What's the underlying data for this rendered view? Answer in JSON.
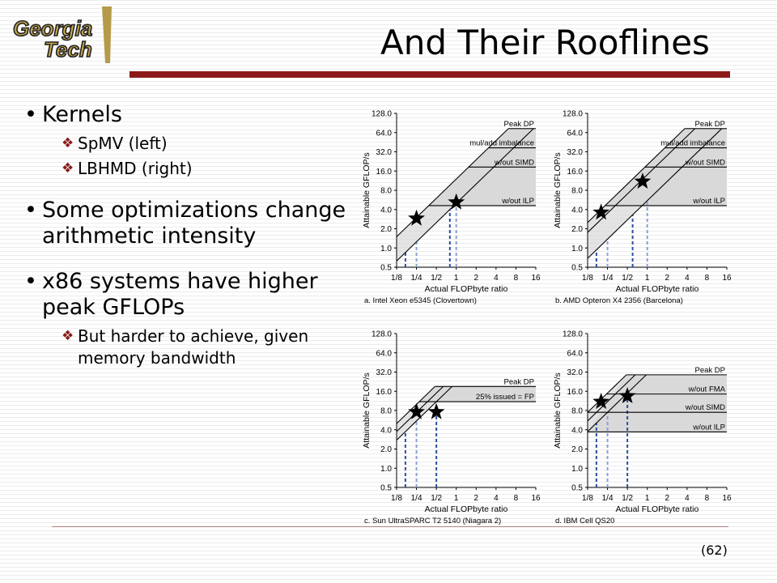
{
  "logo": {
    "line1": "Georgia",
    "line2": "Tech"
  },
  "title": "And Their Rooflines",
  "bullets": [
    {
      "text": "Kernels",
      "sub": [
        "SpMV (left)",
        "LBHMD (right)"
      ]
    },
    {
      "text": "Some optimizations change arithmetic intensity",
      "sub": []
    },
    {
      "text": "x86 systems have higher peak GFLOPs",
      "sub": [
        "But harder to achieve, given memory bandwidth"
      ]
    }
  ],
  "page_number": "(62)",
  "colors": {
    "accent": "#8b1a1a",
    "shade": "#d9d9d9",
    "dash": "#2a4fa0",
    "dash_light": "#8aa0d0"
  },
  "chart_data": [
    {
      "type": "line",
      "caption": "a. Intel Xeon e5345 (Clovertown)",
      "xlabel": "Actual FLOPbyte ratio",
      "ylabel": "Attainable GFLOP/s",
      "x_ticks": [
        "1/8",
        "1/4",
        "1/2",
        "1",
        "2",
        "4",
        "8",
        "16"
      ],
      "y_ticks": [
        "0.5",
        "1.0",
        "2.0",
        "4.0",
        "8.0",
        "16.0",
        "32.0",
        "64.0",
        "128.0"
      ],
      "scale": "log2",
      "xlim": [
        0.125,
        16
      ],
      "ylim": [
        0.5,
        128
      ],
      "ceilings": [
        {
          "label": "Peak DP",
          "value": 74
        },
        {
          "label": "mul/add imbalance",
          "value": 37
        },
        {
          "label": "w/out SIMD",
          "value": 18.5
        },
        {
          "label": "w/out ILP",
          "value": 4.6
        }
      ],
      "bandwidth_diagonals": [
        {
          "x": 1,
          "y": 12
        },
        {
          "x": 1,
          "y": 5
        }
      ],
      "markers": [
        {
          "x": 0.25,
          "y": 2.9
        },
        {
          "x": 1,
          "y": 5.2
        }
      ],
      "dashed_x": [
        0.17,
        0.25,
        0.8,
        1
      ]
    },
    {
      "type": "line",
      "caption": "b. AMD Opteron X4 2356 (Barcelona)",
      "xlabel": "Actual FLOPbyte ratio",
      "ylabel": "Attainable GFLOP/s",
      "x_ticks": [
        "1/8",
        "1/4",
        "1/2",
        "1",
        "2",
        "4",
        "8",
        "16"
      ],
      "y_ticks": [
        "0.5",
        "1.0",
        "2.0",
        "4.0",
        "8.0",
        "16.0",
        "32.0",
        "64.0",
        "128.0"
      ],
      "scale": "log2",
      "xlim": [
        0.125,
        16
      ],
      "ylim": [
        0.5,
        128
      ],
      "ceilings": [
        {
          "label": "Peak DP",
          "value": 74
        },
        {
          "label": "mul/add imbalance",
          "value": 37
        },
        {
          "label": "w/out SIMD",
          "value": 18.5
        },
        {
          "label": "w/out ILP",
          "value": 4.6
        }
      ],
      "bandwidth_diagonals": [
        {
          "x": 1,
          "y": 20
        },
        {
          "x": 1,
          "y": 14
        },
        {
          "x": 1,
          "y": 5.5
        }
      ],
      "markers": [
        {
          "x": 0.2,
          "y": 3.6
        },
        {
          "x": 0.85,
          "y": 11
        }
      ],
      "dashed_x": [
        0.17,
        0.25,
        0.6,
        1
      ]
    },
    {
      "type": "line",
      "caption": "c. Sun UltraSPARC T2 5140 (Niagara 2)",
      "xlabel": "Actual FLOPbyte ratio",
      "ylabel": "Attainable GFLOP/s",
      "x_ticks": [
        "1/8",
        "1/4",
        "1/2",
        "1",
        "2",
        "4",
        "8",
        "16"
      ],
      "y_ticks": [
        "0.5",
        "1.0",
        "2.0",
        "4.0",
        "8.0",
        "16.0",
        "32.0",
        "64.0",
        "128.0"
      ],
      "scale": "log2",
      "xlim": [
        0.125,
        16
      ],
      "ylim": [
        0.5,
        128
      ],
      "ceilings": [
        {
          "label": "Peak DP",
          "value": 19
        },
        {
          "label": "25% issued = FP",
          "value": 11
        }
      ],
      "bandwidth_diagonals": [
        {
          "x": 1,
          "y": 40
        },
        {
          "x": 1,
          "y": 30
        },
        {
          "x": 1,
          "y": 22
        }
      ],
      "markers": [
        {
          "x": 0.25,
          "y": 7.6
        },
        {
          "x": 0.5,
          "y": 7.6
        }
      ],
      "dashed_x": [
        0.17,
        0.25,
        0.5
      ]
    },
    {
      "type": "line",
      "caption": "d. IBM Cell QS20",
      "xlabel": "Actual FLOPbyte ratio",
      "ylabel": "Attainable GFLOP/s",
      "x_ticks": [
        "1/8",
        "1/4",
        "1/2",
        "1",
        "2",
        "4",
        "8",
        "16"
      ],
      "y_ticks": [
        "0.5",
        "1.0",
        "2.0",
        "4.0",
        "8.0",
        "16.0",
        "32.0",
        "64.0",
        "128.0"
      ],
      "scale": "log2",
      "xlim": [
        0.125,
        16
      ],
      "ylim": [
        0.5,
        128
      ],
      "ceilings": [
        {
          "label": "Peak DP",
          "value": 29
        },
        {
          "label": "w/out FMA",
          "value": 14.5
        },
        {
          "label": "w/out SIMD",
          "value": 7.5
        },
        {
          "label": "w/out ILP",
          "value": 3.7
        }
      ],
      "bandwidth_diagonals": [
        {
          "x": 1,
          "y": 60
        },
        {
          "x": 1,
          "y": 44
        },
        {
          "x": 1,
          "y": 30
        }
      ],
      "markers": [
        {
          "x": 0.2,
          "y": 11
        },
        {
          "x": 0.5,
          "y": 13.5
        }
      ],
      "dashed_x": [
        0.17,
        0.25,
        0.5
      ]
    }
  ]
}
